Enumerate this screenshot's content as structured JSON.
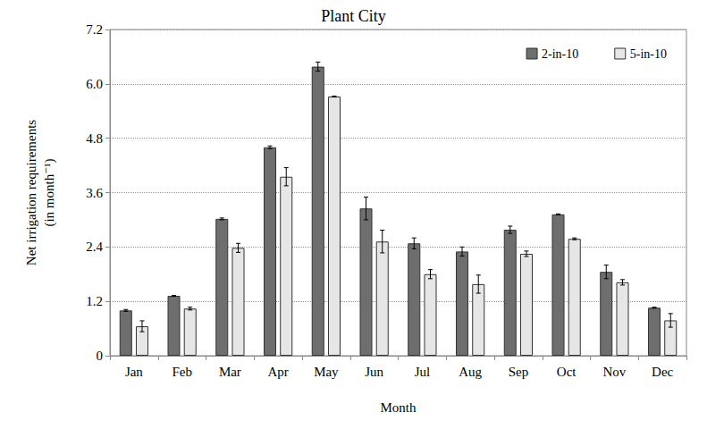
{
  "chart_data": {
    "type": "bar",
    "title": "Plant City",
    "x_label": "Month",
    "y_label": "Net irrigation requirements\n(in month⁻¹)",
    "categories": [
      "Jan",
      "Feb",
      "Mar",
      "Apr",
      "May",
      "Jun",
      "Jul",
      "Aug",
      "Sep",
      "Oct",
      "Nov",
      "Dec"
    ],
    "series": [
      {
        "name": "2-in-10",
        "color": "#6e6e6e",
        "values": [
          1.0,
          1.32,
          3.02,
          4.6,
          6.38,
          3.25,
          2.48,
          2.3,
          2.78,
          3.12,
          1.85,
          1.06
        ],
        "errors": [
          0.02,
          0.01,
          0.02,
          0.03,
          0.1,
          0.25,
          0.12,
          0.1,
          0.08,
          0.01,
          0.15,
          0.01
        ]
      },
      {
        "name": "5-in-10",
        "color": "#e6e6e6",
        "values": [
          0.65,
          1.04,
          2.38,
          3.95,
          5.72,
          2.52,
          1.8,
          1.58,
          2.25,
          2.58,
          1.62,
          0.78
        ],
        "errors": [
          0.12,
          0.03,
          0.1,
          0.2,
          0.01,
          0.25,
          0.1,
          0.2,
          0.06,
          0.02,
          0.06,
          0.15
        ]
      }
    ],
    "ylim": [
      0,
      7.2
    ],
    "yticks": [
      0,
      1.2,
      2.4,
      3.6,
      4.8,
      {
        "value": 6,
        "label": "6.0"
      },
      7.2
    ],
    "grid": true,
    "legend": "upper right"
  }
}
